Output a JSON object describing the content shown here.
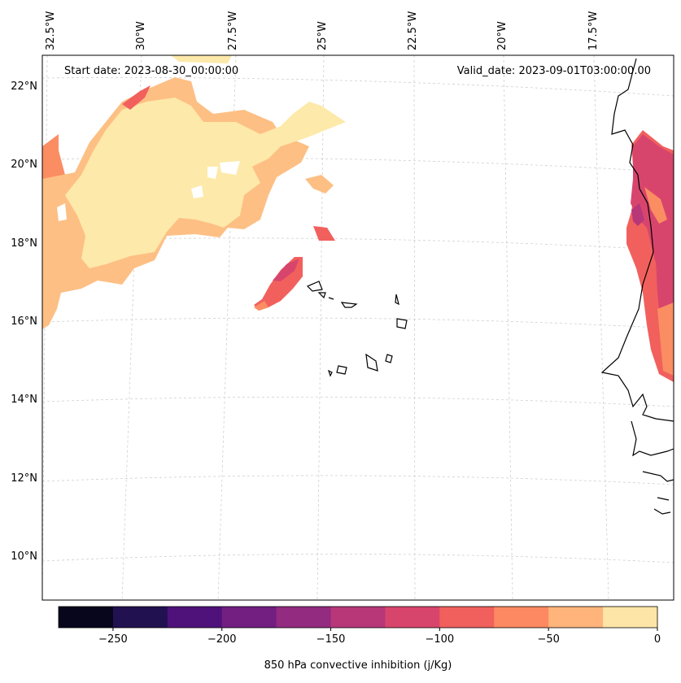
{
  "map": {
    "start_label": "Start date: 2023-08-30_00:00:00",
    "valid_label": "Valid_date: 2023-09-01T03:00:00.00",
    "lon_labels": [
      "32.5°W",
      "30°W",
      "27.5°W",
      "25°W",
      "22.5°W",
      "20°W",
      "17.5°W"
    ],
    "lat_labels": [
      "22°N",
      "20°N",
      "18°N",
      "16°N",
      "14°N",
      "12°N",
      "10°N"
    ]
  },
  "colorbar": {
    "title": "850 hPa convective inhibition (j/Kg)",
    "ticks": [
      "−250",
      "−200",
      "−150",
      "−100",
      "−50",
      "0"
    ],
    "colors": [
      "#07061c",
      "#221150",
      "#4f127b",
      "#721f81",
      "#932b80",
      "#b73779",
      "#d8456c",
      "#f1605d",
      "#fc8961",
      "#feb47b",
      "#fde5a7"
    ]
  },
  "legend_colors": {
    "pale": "#fde9aa",
    "light_orange": "#fdbf84",
    "orange": "#fb8d62",
    "salmon": "#f1605d",
    "rose": "#d8456c",
    "purple": "#b73779"
  }
}
